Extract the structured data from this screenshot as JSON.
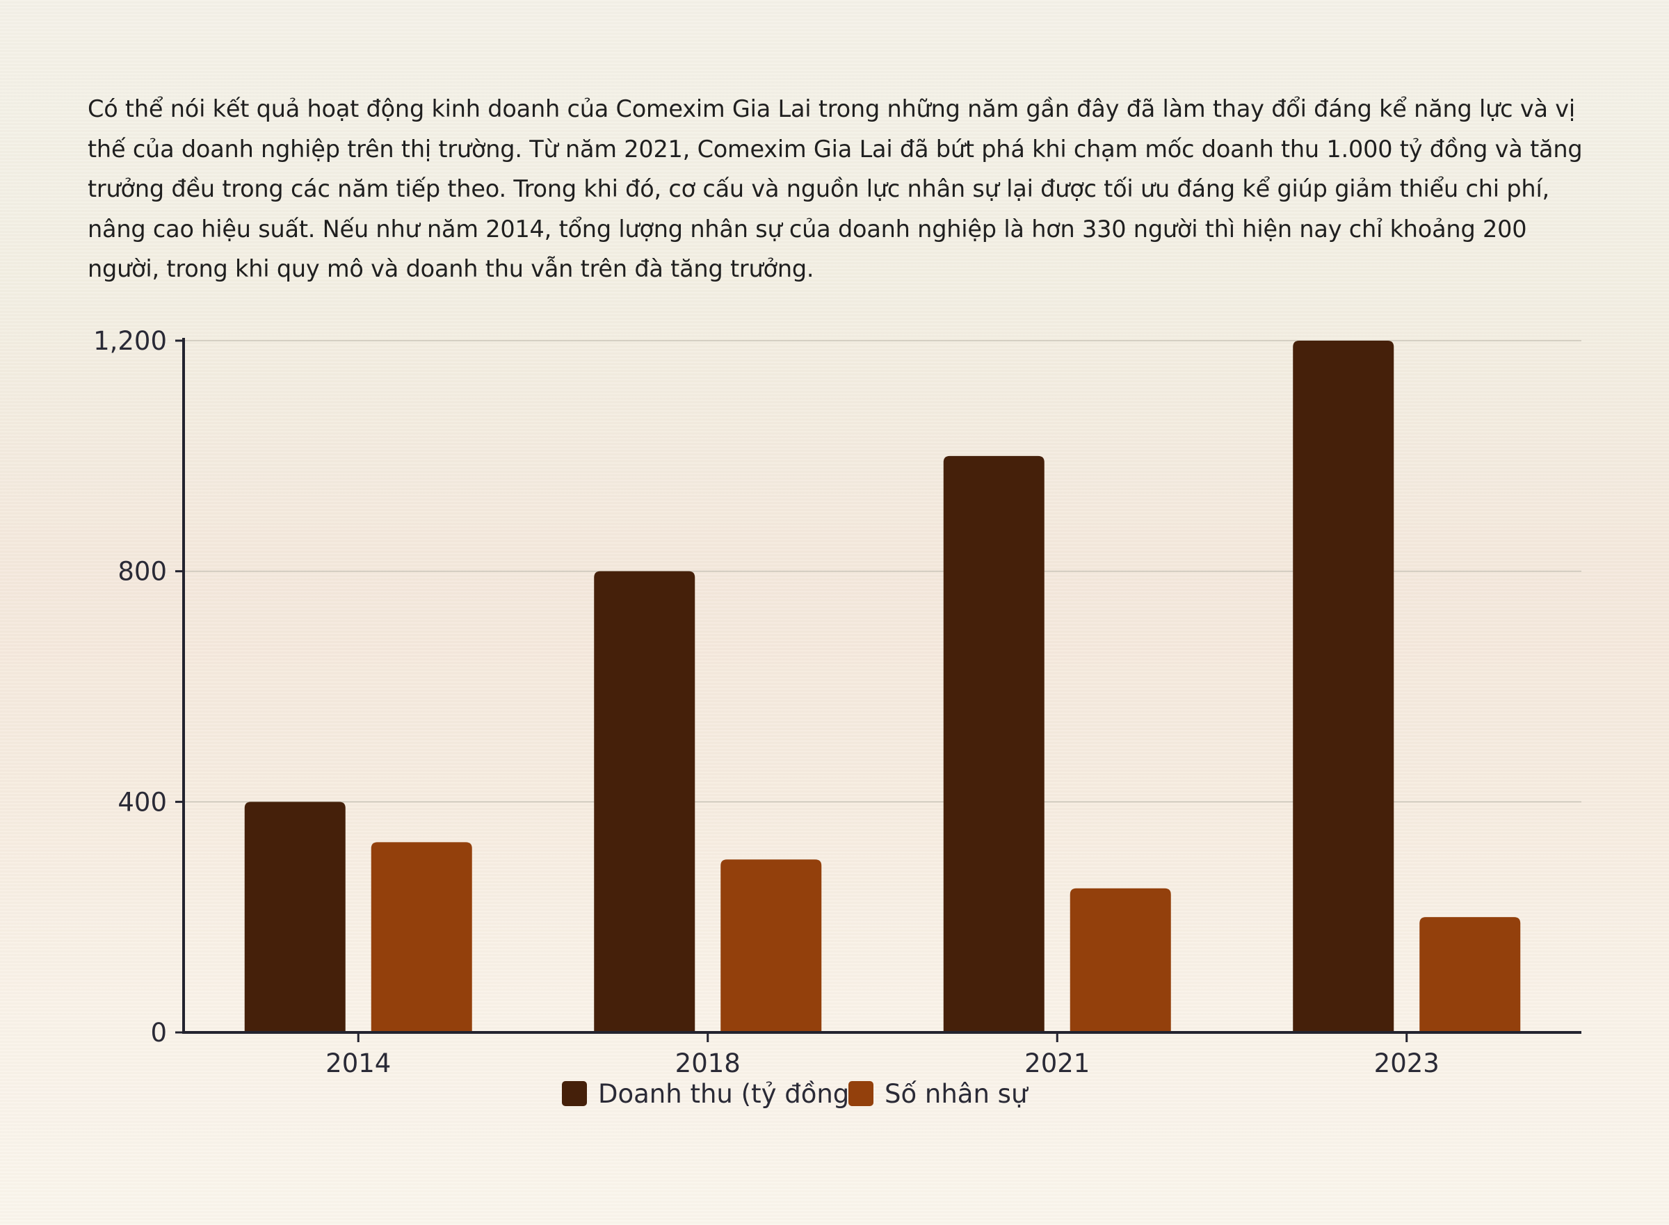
{
  "intro_text": "Có thể nói kết quả hoạt động kinh doanh của Comexim Gia Lai trong những năm gần đây đã làm thay đổi đáng kể năng lực và vị thế của doanh nghiệp trên thị trường. Từ năm 2021, Comexim Gia Lai đã bứt phá khi chạm mốc doanh thu 1.000 tỷ đồng và tăng trưởng đều trong các năm tiếp theo. Trong khi đó, cơ cấu và nguồn lực nhân sự lại được tối ưu đáng kể giúp giảm thiểu chi phí, nâng cao hiệu suất. Nếu như năm 2014, tổng lượng nhân sự của doanh nghiệp là hơn 330 người thì hiện nay chỉ khoảng 200 người, trong khi quy mô và doanh thu vẫn trên đà tăng trưởng.",
  "chart_data": {
    "type": "bar",
    "categories": [
      "2014",
      "2018",
      "2021",
      "2023"
    ],
    "series": [
      {
        "name": "Doanh thu (tỷ đồng)",
        "values": [
          400,
          800,
          1000,
          1200
        ],
        "color": "#45200a"
      },
      {
        "name": "Số nhân sự",
        "values": [
          330,
          300,
          250,
          200
        ],
        "color": "#93400c"
      }
    ],
    "ylim": [
      0,
      1200
    ],
    "yticks": [
      0,
      400,
      800,
      1200
    ],
    "ytick_labels": [
      "0",
      "400",
      "800",
      "1,200"
    ],
    "grid": true,
    "legend_position": "bottom-center",
    "title": "",
    "xlabel": "",
    "ylabel": ""
  }
}
